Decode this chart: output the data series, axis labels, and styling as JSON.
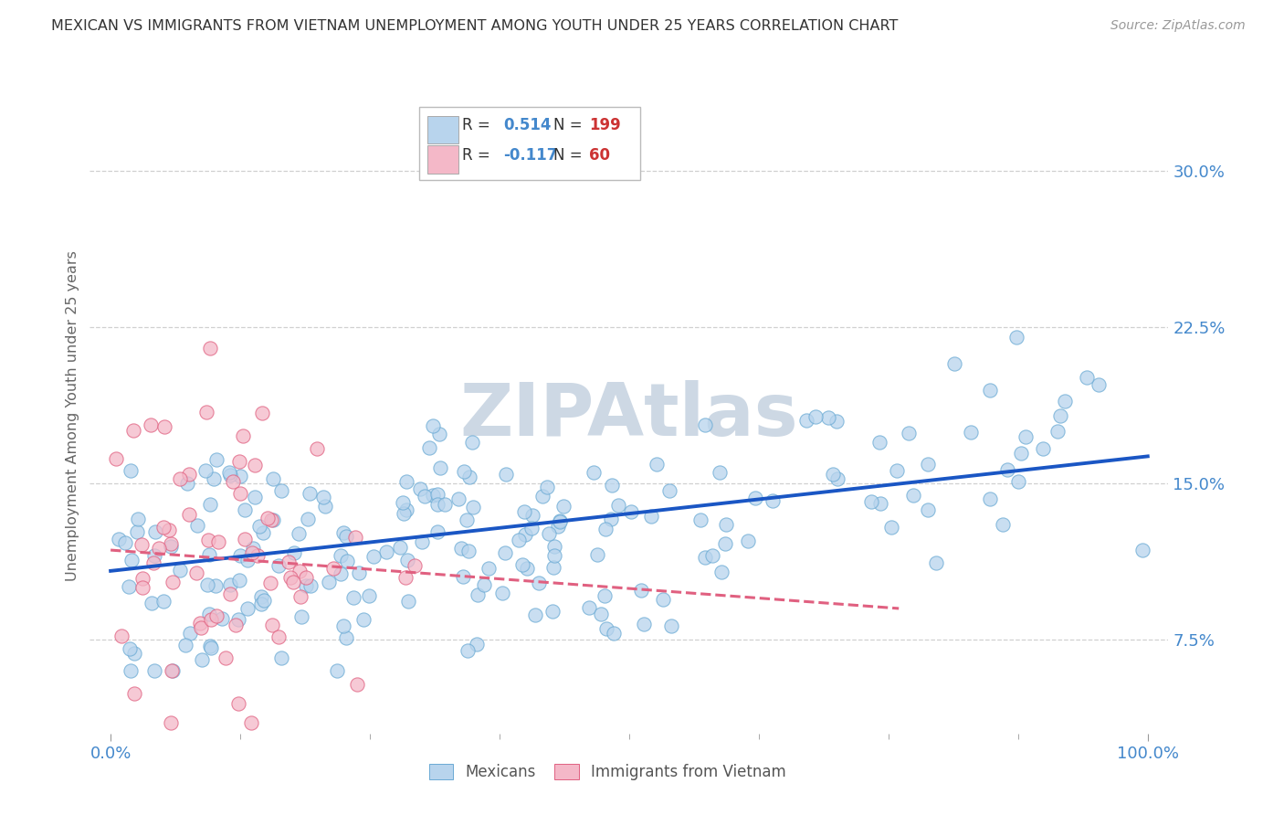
{
  "title": "MEXICAN VS IMMIGRANTS FROM VIETNAM UNEMPLOYMENT AMONG YOUTH UNDER 25 YEARS CORRELATION CHART",
  "source": "Source: ZipAtlas.com",
  "ylabel": "Unemployment Among Youth under 25 years",
  "xlim": [
    -0.02,
    1.02
  ],
  "ylim": [
    0.03,
    0.335
  ],
  "yticks": [
    0.075,
    0.15,
    0.225,
    0.3
  ],
  "ytick_labels": [
    "7.5%",
    "15.0%",
    "22.5%",
    "30.0%"
  ],
  "xticks": [
    0.0,
    1.0
  ],
  "xtick_labels": [
    "0.0%",
    "100.0%"
  ],
  "blue_color": "#b8d4ed",
  "blue_edge": "#6aaad4",
  "blue_trend": "#1a56c4",
  "pink_color": "#f4b8c8",
  "pink_edge": "#e06080",
  "pink_trend": "#e06080",
  "blue_r": "0.514",
  "blue_n": "199",
  "pink_r": "-0.117",
  "pink_n": "60",
  "blue_trend_x0": 0.0,
  "blue_trend_x1": 1.0,
  "blue_trend_y0": 0.108,
  "blue_trend_y1": 0.163,
  "pink_trend_x0": 0.0,
  "pink_trend_x1": 0.76,
  "pink_trend_y0": 0.118,
  "pink_trend_y1": 0.09,
  "watermark": "ZIPAtlas",
  "watermark_color": "#cdd8e4",
  "tick_color": "#4488cc",
  "legend_r_color": "#4488cc",
  "legend_n_color": "#cc3333",
  "grid_color": "#d0d0d0",
  "background": "#ffffff",
  "title_color": "#333333",
  "source_color": "#999999"
}
